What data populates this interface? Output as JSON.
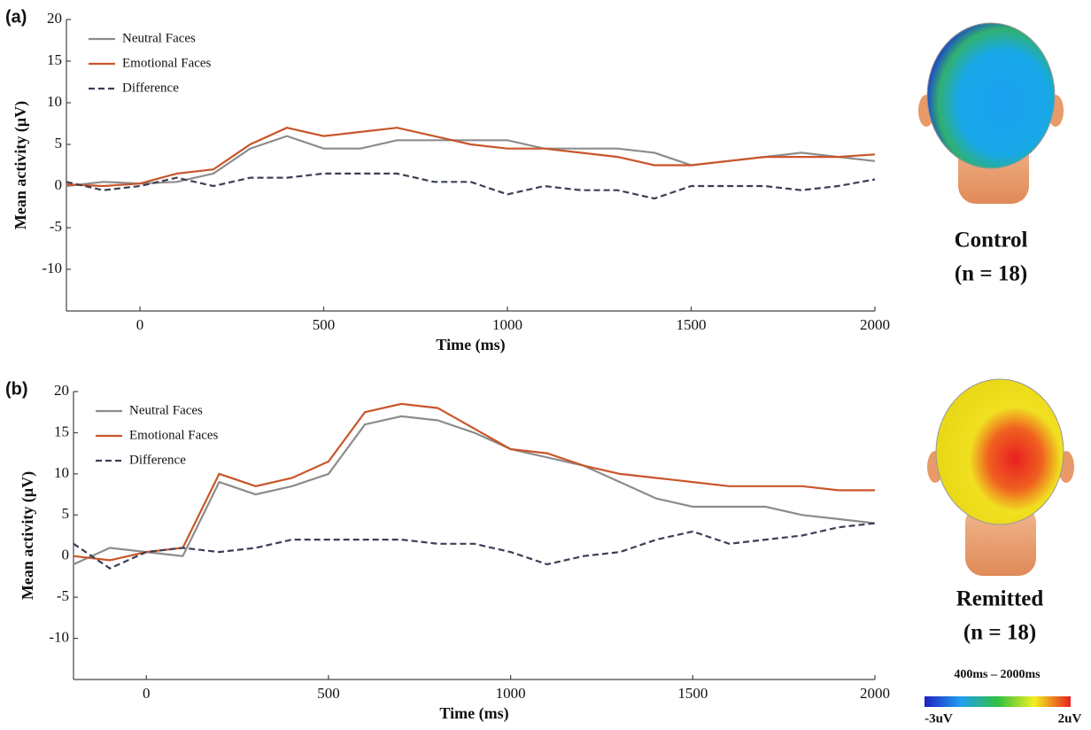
{
  "chart_data": [
    {
      "type": "line",
      "panel": "(a)",
      "ylabel": "Mean activity (μV)",
      "xlabel": "Time (ms)",
      "x": [
        -200,
        -100,
        0,
        100,
        200,
        300,
        400,
        500,
        600,
        700,
        800,
        900,
        1000,
        1100,
        1200,
        1300,
        1400,
        1500,
        1600,
        1700,
        1800,
        1900,
        2000
      ],
      "xlim": [
        -200,
        2000
      ],
      "xticks": [
        0,
        500,
        1000,
        1500,
        2000
      ],
      "ylim": [
        -15,
        20
      ],
      "yticks": [
        -10,
        -5,
        0,
        5,
        10,
        15,
        20
      ],
      "series": [
        {
          "name": "Neutral Faces",
          "color": "#8c8c8c",
          "values": [
            0,
            0.5,
            0.3,
            0.5,
            1.5,
            4.5,
            6,
            4.5,
            4.5,
            5.5,
            5.5,
            5.5,
            5.5,
            4.5,
            4.5,
            4.5,
            4,
            2.5,
            3,
            3.5,
            4,
            3.5,
            3
          ]
        },
        {
          "name": "Emotional Faces",
          "color": "#c8562a",
          "values": [
            0.2,
            0,
            0.3,
            1.5,
            2,
            5,
            7,
            6,
            6.5,
            7,
            6,
            5,
            4.5,
            4.5,
            4,
            3.5,
            2.5,
            2.5,
            3,
            3.5,
            3.5,
            3.5,
            3.8
          ]
        },
        {
          "name": "Difference",
          "color": "#3a4055",
          "dashed": true,
          "values": [
            0.5,
            -0.5,
            0,
            1,
            0,
            1,
            1,
            1.5,
            1.5,
            1.5,
            0.5,
            0.5,
            -1,
            0,
            -0.5,
            -0.5,
            -1.5,
            0,
            0,
            0,
            -0.5,
            0,
            0.8
          ]
        }
      ],
      "group": "Control",
      "n_label": "(n = 18)"
    },
    {
      "type": "line",
      "panel": "(b)",
      "ylabel": "Mean activity (μV)",
      "xlabel": "Time (ms)",
      "x": [
        -200,
        -100,
        0,
        100,
        200,
        300,
        400,
        500,
        600,
        700,
        800,
        900,
        1000,
        1100,
        1200,
        1300,
        1400,
        1500,
        1600,
        1700,
        1800,
        1900,
        2000
      ],
      "xlim": [
        -200,
        2000
      ],
      "xticks": [
        0,
        500,
        1000,
        1500,
        2000
      ],
      "ylim": [
        -15,
        20
      ],
      "yticks": [
        -10,
        -5,
        0,
        5,
        10,
        15,
        20
      ],
      "series": [
        {
          "name": "Neutral Faces",
          "color": "#8c8c8c",
          "values": [
            -1,
            1,
            0.5,
            0,
            9,
            7.5,
            8.5,
            10,
            16,
            17,
            16.5,
            15,
            13,
            12,
            11,
            9,
            7,
            6,
            6,
            6,
            5,
            4.5,
            4
          ]
        },
        {
          "name": "Emotional Faces",
          "color": "#c8562a",
          "values": [
            0,
            -0.5,
            0.5,
            1,
            10,
            8.5,
            9.5,
            11.5,
            17.5,
            18.5,
            18,
            15.5,
            13,
            12.5,
            11,
            10,
            9.5,
            9,
            8.5,
            8.5,
            8.5,
            8,
            8
          ]
        },
        {
          "name": "Difference",
          "color": "#3a4055",
          "dashed": true,
          "values": [
            1.5,
            -1.5,
            0.5,
            1,
            0.5,
            1,
            2,
            2,
            2,
            2,
            1.5,
            1.5,
            0.5,
            -1,
            0,
            0.5,
            2,
            3,
            1.5,
            2,
            2.5,
            3.5,
            4
          ]
        }
      ],
      "group": "Remitted",
      "n_label": "(n = 18)"
    }
  ],
  "colorbar": {
    "title": "400ms – 2000ms",
    "min_label": "-3uV",
    "max_label": "2uV"
  }
}
